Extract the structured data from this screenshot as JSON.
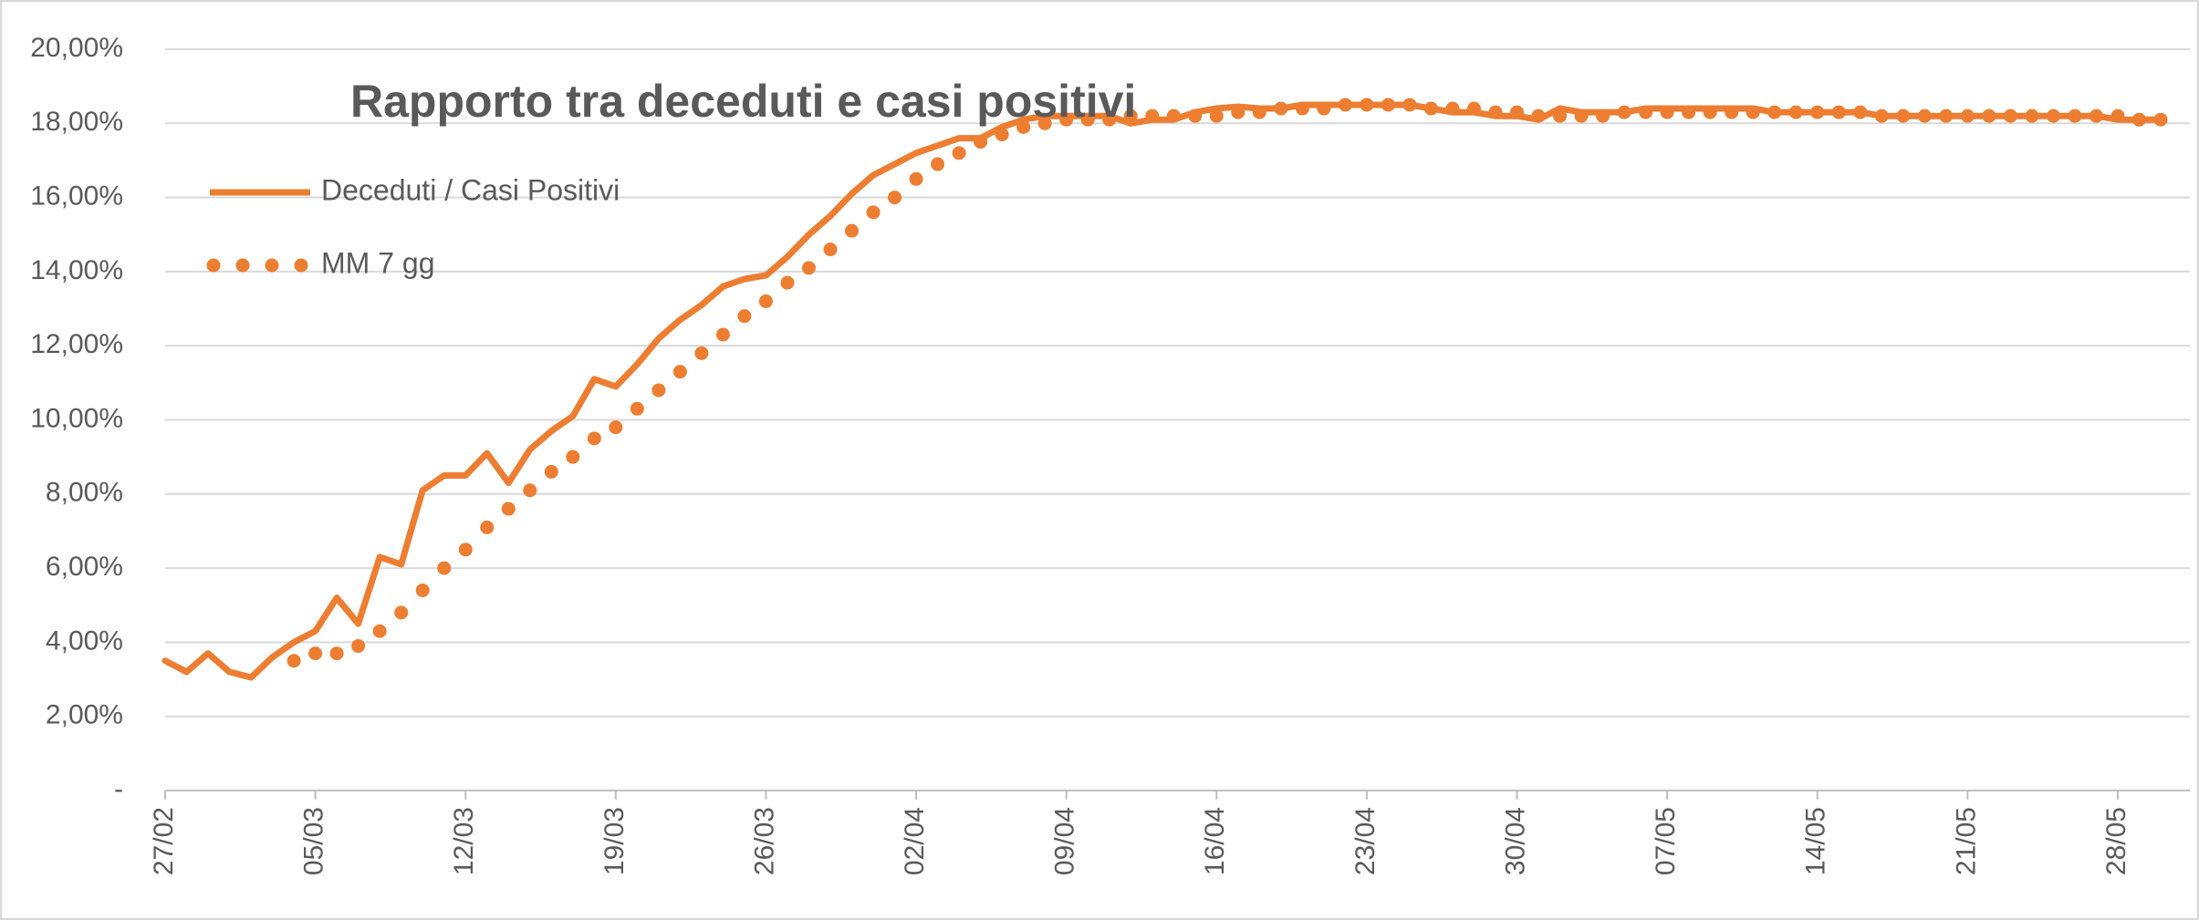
{
  "chart_data": {
    "type": "line",
    "title": "Rapporto tra deceduti e casi positivi",
    "categories": [
      "27/02",
      null,
      null,
      null,
      null,
      null,
      null,
      "05/03",
      null,
      null,
      null,
      null,
      null,
      null,
      "12/03",
      null,
      null,
      null,
      null,
      null,
      null,
      "19/03",
      null,
      null,
      null,
      null,
      null,
      null,
      "26/03",
      null,
      null,
      null,
      null,
      null,
      null,
      "02/04",
      null,
      null,
      null,
      null,
      null,
      null,
      "09/04",
      null,
      null,
      null,
      null,
      null,
      null,
      "16/04",
      null,
      null,
      null,
      null,
      null,
      null,
      "23/04",
      null,
      null,
      null,
      null,
      null,
      null,
      "30/04",
      null,
      null,
      null,
      null,
      null,
      null,
      "07/05",
      null,
      null,
      null,
      null,
      null,
      null,
      "14/05",
      null,
      null,
      null,
      null,
      null,
      null,
      "21/05",
      null,
      null,
      null,
      null,
      null,
      null,
      "28/05",
      null,
      null
    ],
    "series": [
      {
        "name": "Deceduti / Casi Positivi",
        "color": "#ed7d31",
        "style": "solid",
        "values": [
          3.5,
          3.2,
          3.7,
          3.2,
          3.05,
          3.6,
          4.0,
          4.3,
          5.2,
          4.5,
          6.3,
          6.1,
          8.1,
          8.5,
          8.5,
          9.1,
          8.3,
          9.2,
          9.7,
          10.1,
          11.1,
          10.9,
          11.5,
          12.2,
          12.7,
          13.1,
          13.6,
          13.8,
          13.9,
          14.4,
          15.0,
          15.5,
          16.1,
          16.6,
          16.9,
          17.2,
          17.4,
          17.6,
          17.6,
          17.9,
          18.1,
          18.2,
          18.2,
          18.2,
          18.2,
          18.0,
          18.1,
          18.1,
          18.3,
          18.4,
          18.45,
          18.4,
          18.4,
          18.5,
          18.5,
          18.5,
          18.5,
          18.5,
          18.5,
          18.4,
          18.3,
          18.3,
          18.2,
          18.2,
          18.1,
          18.4,
          18.3,
          18.3,
          18.3,
          18.4,
          18.4,
          18.4,
          18.4,
          18.4,
          18.4,
          18.3,
          18.3,
          18.3,
          18.3,
          18.3,
          18.2,
          18.2,
          18.2,
          18.2,
          18.2,
          18.2,
          18.2,
          18.2,
          18.2,
          18.2,
          18.2,
          18.1,
          18.1,
          18.1
        ]
      },
      {
        "name": "MM 7 gg",
        "color": "#ed7d31",
        "style": "dotted",
        "values": [
          null,
          null,
          null,
          null,
          null,
          null,
          3.5,
          3.7,
          3.7,
          3.9,
          4.3,
          4.8,
          5.4,
          6.0,
          6.5,
          7.1,
          7.6,
          8.1,
          8.6,
          9.0,
          9.5,
          9.8,
          10.3,
          10.8,
          11.3,
          11.8,
          12.3,
          12.8,
          13.2,
          13.7,
          14.1,
          14.6,
          15.1,
          15.6,
          16.0,
          16.5,
          16.9,
          17.2,
          17.5,
          17.7,
          17.9,
          18.0,
          18.1,
          18.1,
          18.1,
          18.2,
          18.2,
          18.2,
          18.2,
          18.2,
          18.3,
          18.3,
          18.4,
          18.4,
          18.4,
          18.5,
          18.5,
          18.5,
          18.5,
          18.4,
          18.4,
          18.4,
          18.3,
          18.3,
          18.2,
          18.2,
          18.2,
          18.2,
          18.3,
          18.3,
          18.3,
          18.3,
          18.3,
          18.3,
          18.3,
          18.3,
          18.3,
          18.3,
          18.3,
          18.3,
          18.2,
          18.2,
          18.2,
          18.2,
          18.2,
          18.2,
          18.2,
          18.2,
          18.2,
          18.2,
          18.2,
          18.2,
          18.1,
          18.1
        ]
      }
    ],
    "ylim": [
      0,
      20
    ],
    "yticks": [
      {
        "value": 0,
        "label": "-"
      },
      {
        "value": 2,
        "label": "2,00%"
      },
      {
        "value": 4,
        "label": "4,00%"
      },
      {
        "value": 6,
        "label": "6,00%"
      },
      {
        "value": 8,
        "label": "8,00%"
      },
      {
        "value": 10,
        "label": "10,00%"
      },
      {
        "value": 12,
        "label": "12,00%"
      },
      {
        "value": 14,
        "label": "14,00%"
      },
      {
        "value": 16,
        "label": "16,00%"
      },
      {
        "value": 18,
        "label": "18,00%"
      },
      {
        "value": 20,
        "label": "20,00%"
      }
    ],
    "grid": true,
    "legend": "top-left"
  }
}
